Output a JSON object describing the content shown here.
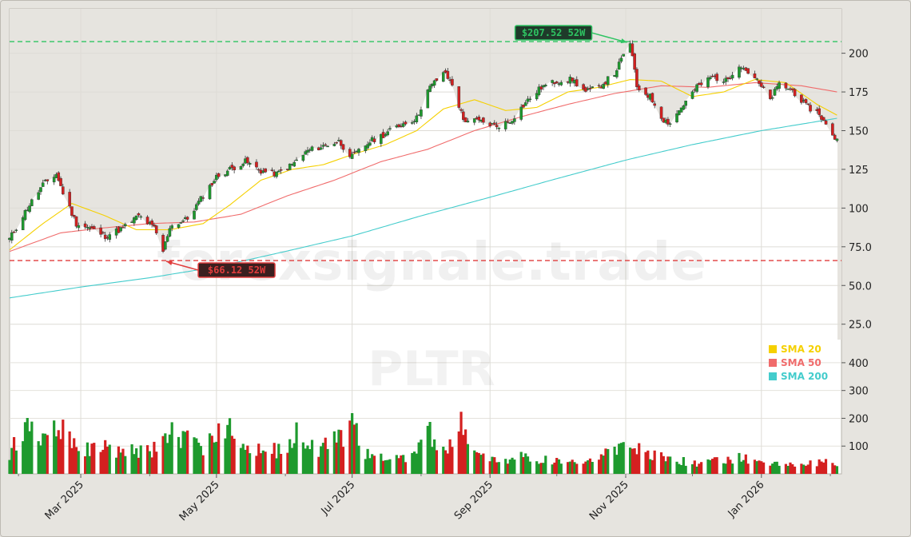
{
  "chart_data": {
    "type": "candlestick",
    "ticker": "PLTR",
    "watermark": "forexsignale.trade",
    "price_axis": {
      "ticks": [
        25.0,
        50.0,
        75.0,
        100,
        125,
        150,
        175,
        200
      ],
      "tick_labels": [
        "25.0",
        "50.0",
        "75.0",
        "100",
        "125",
        "150",
        "175",
        "200"
      ],
      "ylim": [
        14,
        222
      ]
    },
    "volume_axis": {
      "ticks": [
        100,
        200,
        300,
        400
      ],
      "tick_labels": [
        "100",
        "200",
        "300",
        "400"
      ],
      "ylim": [
        0,
        440
      ]
    },
    "x_axis": {
      "tick_labels": [
        "Mar 2025",
        "May 2025",
        "Jul 2025",
        "Sep 2025",
        "Nov 2025",
        "Jan 2026"
      ],
      "tick_dates": [
        "2025-03-01",
        "2025-05-01",
        "2025-07-01",
        "2025-09-01",
        "2025-11-01",
        "2026-01-01"
      ],
      "xlim": [
        "2025-01-28",
        "2026-02-06"
      ]
    },
    "price_anchors": [
      [
        "2025-01-28",
        80
      ],
      [
        "2025-02-05",
        100
      ],
      [
        "2025-02-12",
        115
      ],
      [
        "2025-02-18",
        122
      ],
      [
        "2025-02-21",
        110
      ],
      [
        "2025-02-27",
        90
      ],
      [
        "2025-03-05",
        87
      ],
      [
        "2025-03-12",
        82
      ],
      [
        "2025-03-20",
        87
      ],
      [
        "2025-03-27",
        95
      ],
      [
        "2025-04-03",
        87
      ],
      [
        "2025-04-07",
        72
      ],
      [
        "2025-04-10",
        88
      ],
      [
        "2025-04-18",
        93
      ],
      [
        "2025-04-25",
        108
      ],
      [
        "2025-05-01",
        120
      ],
      [
        "2025-05-07",
        125
      ],
      [
        "2025-05-14",
        130
      ],
      [
        "2025-05-21",
        124
      ],
      [
        "2025-05-28",
        122
      ],
      [
        "2025-06-04",
        128
      ],
      [
        "2025-06-11",
        137
      ],
      [
        "2025-06-18",
        140
      ],
      [
        "2025-06-25",
        143
      ],
      [
        "2025-07-01",
        133
      ],
      [
        "2025-07-09",
        143
      ],
      [
        "2025-07-16",
        148
      ],
      [
        "2025-07-23",
        154
      ],
      [
        "2025-07-30",
        158
      ],
      [
        "2025-08-04",
        176
      ],
      [
        "2025-08-11",
        188
      ],
      [
        "2025-08-15",
        180
      ],
      [
        "2025-08-20",
        157
      ],
      [
        "2025-08-27",
        156
      ],
      [
        "2025-09-04",
        153
      ],
      [
        "2025-09-10",
        156
      ],
      [
        "2025-09-17",
        168
      ],
      [
        "2025-09-24",
        178
      ],
      [
        "2025-10-01",
        182
      ],
      [
        "2025-10-08",
        183
      ],
      [
        "2025-10-14",
        175
      ],
      [
        "2025-10-20",
        178
      ],
      [
        "2025-10-27",
        187
      ],
      [
        "2025-11-03",
        207
      ],
      [
        "2025-11-06",
        178
      ],
      [
        "2025-11-12",
        172
      ],
      [
        "2025-11-18",
        157
      ],
      [
        "2025-11-21",
        155
      ],
      [
        "2025-11-26",
        165
      ],
      [
        "2025-12-03",
        178
      ],
      [
        "2025-12-10",
        185
      ],
      [
        "2025-12-16",
        182
      ],
      [
        "2025-12-22",
        193
      ],
      [
        "2025-12-29",
        184
      ],
      [
        "2026-01-05",
        170
      ],
      [
        "2026-01-09",
        180
      ],
      [
        "2026-01-15",
        176
      ],
      [
        "2026-01-21",
        166
      ],
      [
        "2026-01-27",
        161
      ],
      [
        "2026-02-02",
        146
      ],
      [
        "2026-02-04",
        145
      ]
    ],
    "sma_20_anchors": [
      [
        "2025-01-28",
        73
      ],
      [
        "2025-02-12",
        90
      ],
      [
        "2025-02-25",
        103
      ],
      [
        "2025-03-12",
        95
      ],
      [
        "2025-03-26",
        86
      ],
      [
        "2025-04-10",
        86
      ],
      [
        "2025-04-25",
        90
      ],
      [
        "2025-05-07",
        102
      ],
      [
        "2025-05-21",
        118
      ],
      [
        "2025-06-04",
        125
      ],
      [
        "2025-06-18",
        128
      ],
      [
        "2025-07-02",
        135
      ],
      [
        "2025-07-16",
        141
      ],
      [
        "2025-07-30",
        150
      ],
      [
        "2025-08-11",
        164
      ],
      [
        "2025-08-25",
        170
      ],
      [
        "2025-09-08",
        163
      ],
      [
        "2025-09-22",
        165
      ],
      [
        "2025-10-06",
        175
      ],
      [
        "2025-10-20",
        178
      ],
      [
        "2025-11-03",
        183
      ],
      [
        "2025-11-17",
        182
      ],
      [
        "2025-12-01",
        172
      ],
      [
        "2025-12-15",
        175
      ],
      [
        "2025-12-29",
        183
      ],
      [
        "2026-01-12",
        181
      ],
      [
        "2026-01-26",
        167
      ],
      [
        "2026-02-04",
        160
      ]
    ],
    "sma_50_anchors": [
      [
        "2025-01-28",
        72
      ],
      [
        "2025-02-20",
        84
      ],
      [
        "2025-03-10",
        87
      ],
      [
        "2025-04-01",
        90
      ],
      [
        "2025-04-21",
        91
      ],
      [
        "2025-05-12",
        96
      ],
      [
        "2025-06-02",
        108
      ],
      [
        "2025-06-23",
        118
      ],
      [
        "2025-07-14",
        130
      ],
      [
        "2025-08-04",
        138
      ],
      [
        "2025-08-25",
        150
      ],
      [
        "2025-09-15",
        159
      ],
      [
        "2025-10-06",
        167
      ],
      [
        "2025-10-27",
        174
      ],
      [
        "2025-11-17",
        179
      ],
      [
        "2025-12-08",
        178
      ],
      [
        "2025-12-29",
        181
      ],
      [
        "2026-01-19",
        179
      ],
      [
        "2026-02-04",
        175
      ]
    ],
    "sma_200_anchors": [
      [
        "2025-01-28",
        42
      ],
      [
        "2025-03-01",
        49
      ],
      [
        "2025-04-01",
        55
      ],
      [
        "2025-05-01",
        62
      ],
      [
        "2025-06-01",
        72
      ],
      [
        "2025-07-01",
        82
      ],
      [
        "2025-08-01",
        95
      ],
      [
        "2025-09-01",
        107
      ],
      [
        "2025-10-01",
        119
      ],
      [
        "2025-11-01",
        131
      ],
      [
        "2025-12-01",
        141
      ],
      [
        "2026-01-01",
        150
      ],
      [
        "2026-02-04",
        158
      ]
    ],
    "volume_anchors": [
      [
        "2025-01-28",
        90
      ],
      [
        "2025-02-04",
        230
      ],
      [
        "2025-02-10",
        130
      ],
      [
        "2025-02-18",
        240
      ],
      [
        "2025-02-21",
        185
      ],
      [
        "2025-03-01",
        110
      ],
      [
        "2025-03-15",
        105
      ],
      [
        "2025-04-01",
        90
      ],
      [
        "2025-04-07",
        185
      ],
      [
        "2025-04-15",
        150
      ],
      [
        "2025-04-25",
        110
      ],
      [
        "2025-05-06",
        200
      ],
      [
        "2025-05-15",
        110
      ],
      [
        "2025-06-02",
        95
      ],
      [
        "2025-06-06",
        185
      ],
      [
        "2025-06-16",
        100
      ],
      [
        "2025-07-01",
        200
      ],
      [
        "2025-07-08",
        80
      ],
      [
        "2025-07-25",
        60
      ],
      [
        "2025-08-04",
        200
      ],
      [
        "2025-08-11",
        90
      ],
      [
        "2025-08-19",
        215
      ],
      [
        "2025-08-25",
        100
      ],
      [
        "2025-09-02",
        60
      ],
      [
        "2025-09-15",
        70
      ],
      [
        "2025-10-01",
        60
      ],
      [
        "2025-10-15",
        55
      ],
      [
        "2025-11-04",
        120
      ],
      [
        "2025-11-10",
        85
      ],
      [
        "2025-11-19",
        70
      ],
      [
        "2025-12-01",
        45
      ],
      [
        "2025-12-15",
        60
      ],
      [
        "2025-12-22",
        70
      ],
      [
        "2026-01-01",
        40
      ],
      [
        "2026-01-15",
        45
      ],
      [
        "2026-02-04",
        50
      ]
    ],
    "markers": [
      {
        "label": "$207.52 52W",
        "value": 207.52,
        "date": "2025-11-03",
        "color": "#2ec462"
      },
      {
        "label": "$66.12 52W",
        "value": 66.12,
        "date": "2025-04-07",
        "color": "#e03c3c"
      }
    ],
    "series": [
      {
        "name": "SMA 20",
        "color": "#f5d000"
      },
      {
        "name": "SMA 50",
        "color": "#f06b6b"
      },
      {
        "name": "SMA 200",
        "color": "#44cccc"
      }
    ],
    "up_color": "#1e9a2e",
    "down_color": "#d42020",
    "last_value": 145
  }
}
